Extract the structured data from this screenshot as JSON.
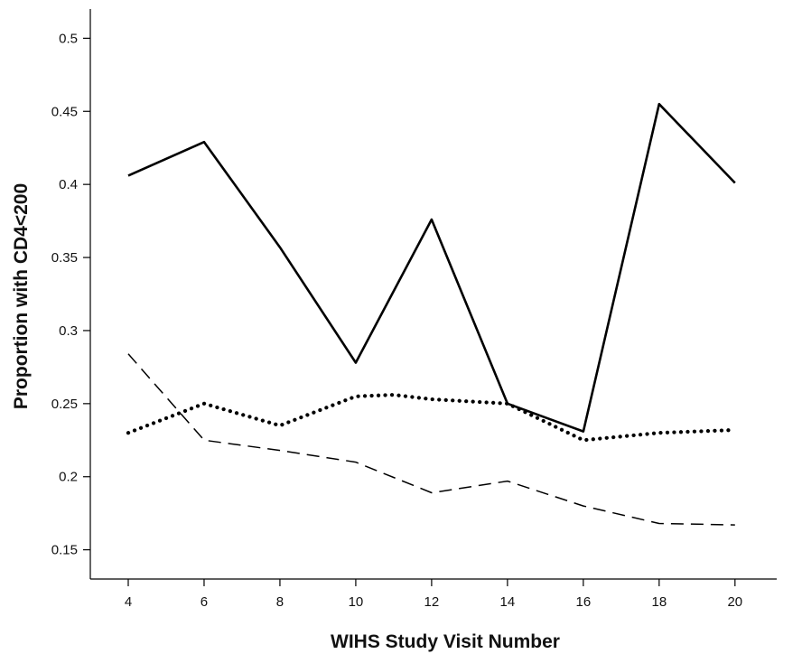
{
  "chart_data": {
    "type": "line",
    "title": "",
    "xlabel": "WIHS Study Visit Number",
    "ylabel": "Proportion with CD4<200",
    "x": [
      4,
      6,
      8,
      10,
      12,
      14,
      16,
      18,
      20
    ],
    "xticks": [
      4,
      6,
      8,
      10,
      12,
      14,
      16,
      18,
      20
    ],
    "yticks": [
      0.15,
      0.2,
      0.25,
      0.3,
      0.35,
      0.4,
      0.45,
      0.5
    ],
    "ytick_labels": [
      "0.15",
      "0.2",
      "0.25",
      "0.3",
      "0.35",
      "0.4",
      "0.45",
      "0.5"
    ],
    "xlim": [
      3,
      21.1
    ],
    "ylim": [
      0.13,
      0.52
    ],
    "grid": false,
    "legend": "none",
    "series": [
      {
        "style": "solid",
        "color": "#000000",
        "x": [
          4,
          6,
          8,
          10,
          12,
          14,
          16,
          18,
          20
        ],
        "values": [
          0.406,
          0.429,
          0.357,
          0.278,
          0.376,
          0.25,
          0.231,
          0.455,
          0.401
        ]
      },
      {
        "style": "dotted",
        "color": "#000000",
        "x": [
          4,
          6,
          8,
          10,
          11,
          12,
          14,
          16,
          18,
          20
        ],
        "values": [
          0.23,
          0.25,
          0.235,
          0.255,
          0.256,
          0.253,
          0.25,
          0.225,
          0.23,
          0.232
        ]
      },
      {
        "style": "dashed",
        "color": "#000000",
        "x": [
          4,
          6,
          8,
          10,
          12,
          14,
          16,
          18,
          20
        ],
        "values": [
          0.284,
          0.225,
          0.218,
          0.21,
          0.189,
          0.197,
          0.18,
          0.168,
          0.167
        ]
      }
    ]
  }
}
